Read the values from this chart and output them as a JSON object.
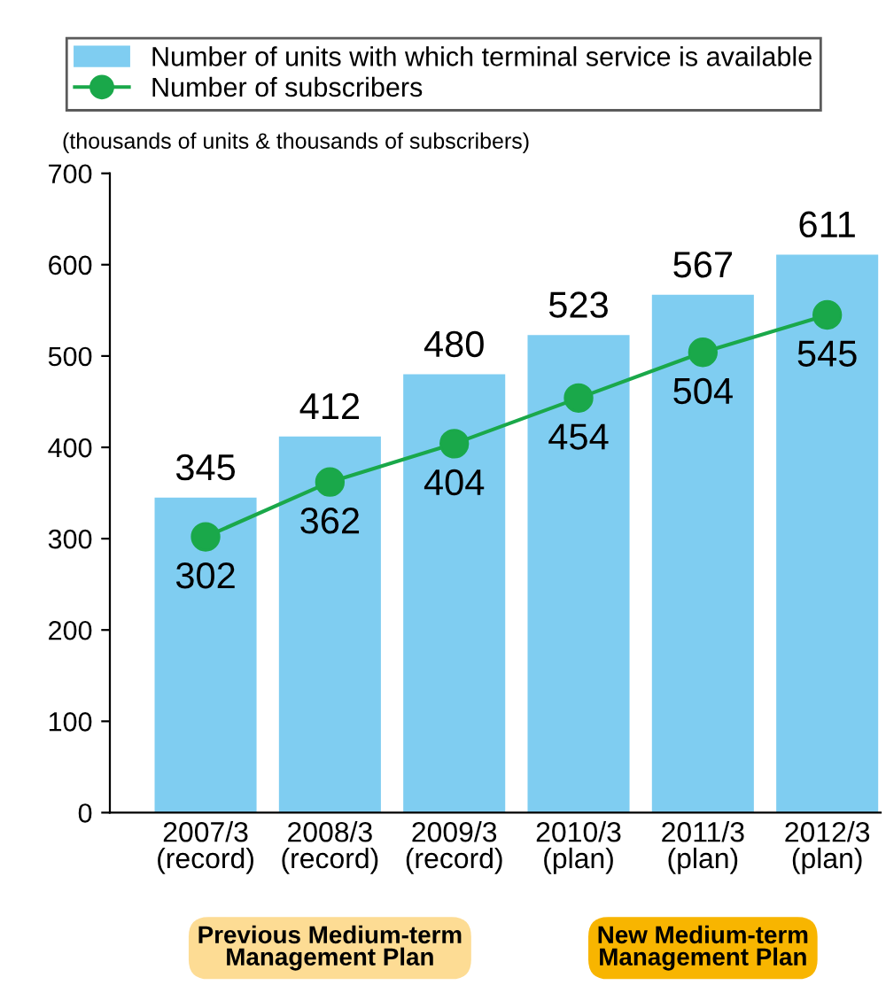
{
  "chart_data": {
    "type": "bar",
    "ylabel": "(thousands of units & thousands of subscribers)",
    "categories": [
      "2007/3\n(record)",
      "2008/3\n(record)",
      "2009/3\n(record)",
      "2010/3\n(plan)",
      "2011/3\n(plan)",
      "2012/3\n(plan)"
    ],
    "series": [
      {
        "name": "Number of units with which terminal service is available",
        "color": "#7fcdf1",
        "values": [
          345,
          412,
          480,
          523,
          567,
          611
        ]
      },
      {
        "name": "Number of subscribers",
        "type": "line",
        "color": "#1aa84a",
        "marker": "circle",
        "values": [
          302,
          362,
          404,
          454,
          504,
          545
        ]
      }
    ],
    "ylim": [
      0,
      700
    ],
    "yticks": [
      0,
      100,
      200,
      300,
      400,
      500,
      600,
      700
    ],
    "grid": false,
    "legend": "top",
    "data_labels": true,
    "annotations": [
      "Previous Medium-term\nManagement Plan",
      "New Medium-term\nManagement Plan"
    ]
  }
}
